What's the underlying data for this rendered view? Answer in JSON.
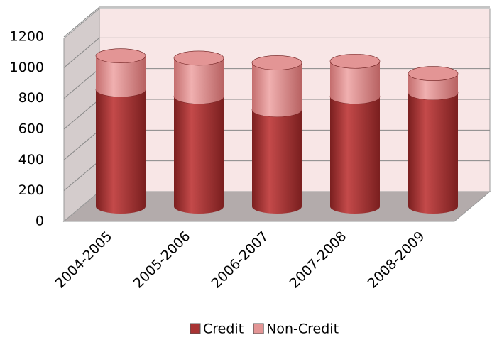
{
  "chart_data": {
    "type": "bar",
    "stacked": true,
    "style": "3d-cylinder",
    "categories": [
      "2004-2005",
      "2005-2006",
      "2006-2007",
      "2007-2008",
      "2008-2009"
    ],
    "series": [
      {
        "name": "Credit",
        "color": "#a83434",
        "values": [
          760,
          715,
          630,
          715,
          740
        ]
      },
      {
        "name": "Non-Credit",
        "color": "#e39595",
        "values": [
          220,
          250,
          305,
          230,
          125
        ]
      }
    ],
    "ylim": [
      0,
      1200
    ],
    "yticks": [
      0,
      200,
      400,
      600,
      800,
      1000,
      1200
    ],
    "grid": true,
    "legend": "bottom"
  }
}
